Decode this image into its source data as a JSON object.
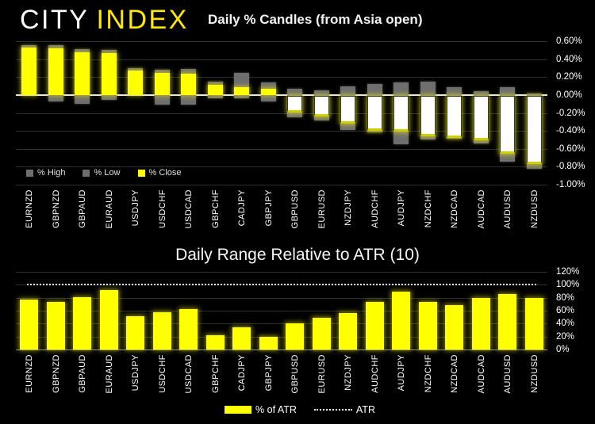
{
  "logo": {
    "city": "CITY",
    "index": "INDEX"
  },
  "colors": {
    "background": "#000000",
    "logo_yellow": "#FFE800",
    "bar_yellow": "#FFFF00",
    "bar_gray": "#6E6E6E",
    "neg_body_white": "#FFFFFF",
    "text_white": "#FFFFFF"
  },
  "chart_data": [
    {
      "type": "bar",
      "title": "Daily % Candles (from Asia open)",
      "categories": [
        "EURNZD",
        "GBPNZD",
        "GBPAUD",
        "EURAUD",
        "USDJPY",
        "USDCHF",
        "USDCAD",
        "GBPCHF",
        "CADJPY",
        "GBPJPY",
        "GBPUSD",
        "EURUSD",
        "NZDJPY",
        "AUDCHF",
        "AUDJPY",
        "NZDCHF",
        "NZDCAD",
        "AUDCAD",
        "AUDUSD",
        "NZDUSD"
      ],
      "series": [
        {
          "name": "% High",
          "color": "#6E6E6E",
          "values": [
            0.56,
            0.56,
            0.51,
            0.5,
            0.3,
            0.28,
            0.29,
            0.15,
            0.25,
            0.14,
            0.07,
            0.05,
            0.1,
            0.12,
            0.14,
            0.15,
            0.09,
            0.04,
            0.09,
            0.02
          ]
        },
        {
          "name": "% Low",
          "color": "#6E6E6E",
          "values": [
            0.02,
            -0.07,
            -0.1,
            -0.05,
            0.01,
            -0.11,
            -0.11,
            -0.04,
            -0.04,
            -0.07,
            -0.25,
            -0.28,
            -0.39,
            -0.42,
            -0.55,
            -0.5,
            -0.49,
            -0.54,
            -0.74,
            -0.82
          ]
        },
        {
          "name": "% Close",
          "color": "#FFFF00",
          "values": [
            0.53,
            0.52,
            0.48,
            0.47,
            0.27,
            0.25,
            0.24,
            0.11,
            0.09,
            0.07,
            -0.19,
            -0.23,
            -0.31,
            -0.39,
            -0.4,
            -0.45,
            -0.47,
            -0.5,
            -0.65,
            -0.76
          ]
        }
      ],
      "ylim": [
        -1.0,
        0.6
      ],
      "y_ticks": [
        {
          "value": 0.6,
          "label": "0.60%"
        },
        {
          "value": 0.4,
          "label": "0.40%"
        },
        {
          "value": 0.2,
          "label": "0.20%"
        },
        {
          "value": 0.0,
          "label": "0.00%"
        },
        {
          "value": -0.2,
          "label": "-0.20%"
        },
        {
          "value": -0.4,
          "label": "-0.40%"
        },
        {
          "value": -0.6,
          "label": "-0.60%"
        },
        {
          "value": -0.8,
          "label": "-0.80%"
        },
        {
          "value": -1.0,
          "label": "-1.00%"
        }
      ],
      "grid": true,
      "legend_position": "bottom-left"
    },
    {
      "type": "bar",
      "title": "Daily Range Relative to ATR (10)",
      "categories": [
        "EURNZD",
        "GBPNZD",
        "GBPAUD",
        "EURAUD",
        "USDJPY",
        "USDCHF",
        "USDCAD",
        "GBPCHF",
        "CADJPY",
        "GBPJPY",
        "GBPUSD",
        "EURUSD",
        "NZDJPY",
        "AUDCHF",
        "AUDJPY",
        "NZDCHF",
        "NZDCAD",
        "AUDCAD",
        "AUDUSD",
        "NZDUSD"
      ],
      "series": [
        {
          "name": "% of ATR",
          "color": "#FFFF00",
          "values": [
            77,
            73,
            81,
            92,
            51,
            58,
            63,
            22,
            34,
            20,
            40,
            49,
            56,
            74,
            90,
            73,
            68,
            79,
            86,
            80
          ]
        },
        {
          "name": "ATR",
          "type": "line",
          "style": "dotted",
          "color": "#FFFFFF",
          "value": 100
        }
      ],
      "ylim": [
        0,
        120
      ],
      "y_ticks": [
        {
          "value": 120,
          "label": "120%"
        },
        {
          "value": 100,
          "label": "100%"
        },
        {
          "value": 80,
          "label": "80%"
        },
        {
          "value": 60,
          "label": "60%"
        },
        {
          "value": 40,
          "label": "40%"
        },
        {
          "value": 20,
          "label": "20%"
        },
        {
          "value": 0,
          "label": "0%"
        }
      ],
      "grid": true,
      "legend_position": "bottom-center"
    }
  ]
}
